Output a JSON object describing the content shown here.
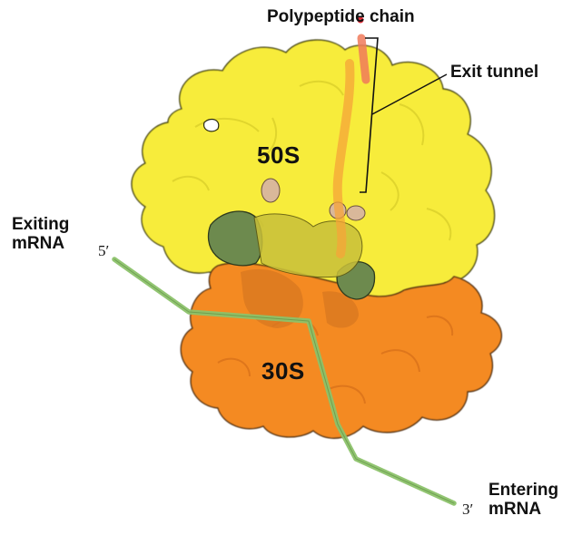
{
  "labels": {
    "polypeptide_chain": "Polypeptide chain",
    "exit_tunnel": "Exit tunnel",
    "large_subunit": "50S",
    "small_subunit": "30S",
    "exiting_mrna": [
      "Exiting",
      "mRNA"
    ],
    "entering_mrna": [
      "Entering",
      "mRNA"
    ],
    "five_prime": "5′",
    "three_prime": "3′"
  },
  "colors": {
    "large_subunit": "#f7ec3a",
    "small_subunit": "#f48a23",
    "mrna": "#8cc26a",
    "trna": "#6d8a4e",
    "polypeptide": "#f07a5a",
    "tunnel": "#f5a43a"
  }
}
